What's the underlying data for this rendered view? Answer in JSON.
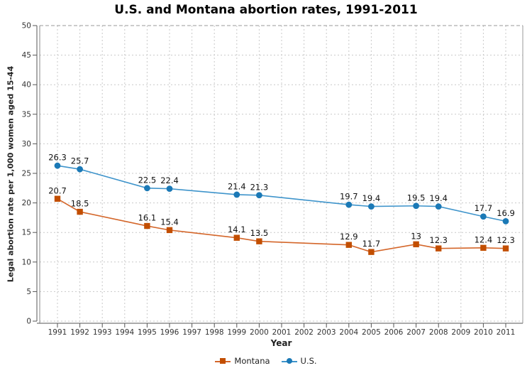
{
  "title": "U.S. and Montana abortion rates, 1991-2011",
  "chart_data": {
    "type": "line",
    "title": "U.S. and Montana abortion rates, 1991-2011",
    "xlabel": "Year",
    "ylabel": "Legal abortion rate per 1,000 women aged 15-44",
    "x_ticks": [
      1991,
      1992,
      1993,
      1994,
      1995,
      1996,
      1997,
      1998,
      1999,
      2000,
      2001,
      2002,
      2003,
      2004,
      2005,
      2006,
      2007,
      2008,
      2009,
      2010,
      2011
    ],
    "y_ticks": [
      0,
      5,
      10,
      15,
      20,
      25,
      30,
      35,
      40,
      45,
      50
    ],
    "ylim": [
      0,
      50
    ],
    "grid": true,
    "legend_position": "bottom",
    "colors": {
      "grid": "#c9c9c9",
      "frame": "#999999",
      "axis": "#555555",
      "tick_text": "#333333",
      "value_text": "#111111"
    },
    "series": [
      {
        "name": "Montana",
        "marker": "square",
        "marker_color": "#c24e00",
        "line_color": "#d4662a",
        "x": [
          1991,
          1992,
          1995,
          1996,
          1999,
          2000,
          2004,
          2005,
          2007,
          2008,
          2010,
          2011
        ],
        "y": [
          20.7,
          18.5,
          16.1,
          15.4,
          14.1,
          13.5,
          12.9,
          11.7,
          13,
          12.3,
          12.4,
          12.3
        ],
        "labels": [
          "20.7",
          "18.5",
          "16.1",
          "15.4",
          "14.1",
          "13.5",
          "12.9",
          "11.7",
          "13",
          "12.3",
          "12.4",
          "12.3"
        ]
      },
      {
        "name": "U.S.",
        "marker": "circle",
        "marker_color": "#1b79b6",
        "line_color": "#3e94cb",
        "x": [
          1991,
          1992,
          1995,
          1996,
          1999,
          2000,
          2004,
          2005,
          2007,
          2008,
          2010,
          2011
        ],
        "y": [
          26.3,
          25.7,
          22.5,
          22.4,
          21.4,
          21.3,
          19.7,
          19.4,
          19.5,
          19.4,
          17.7,
          16.9
        ],
        "labels": [
          "26.3",
          "25.7",
          "22.5",
          "22.4",
          "21.4",
          "21.3",
          "19.7",
          "19.4",
          "19.5",
          "19.4",
          "17.7",
          "16.9"
        ]
      }
    ]
  }
}
